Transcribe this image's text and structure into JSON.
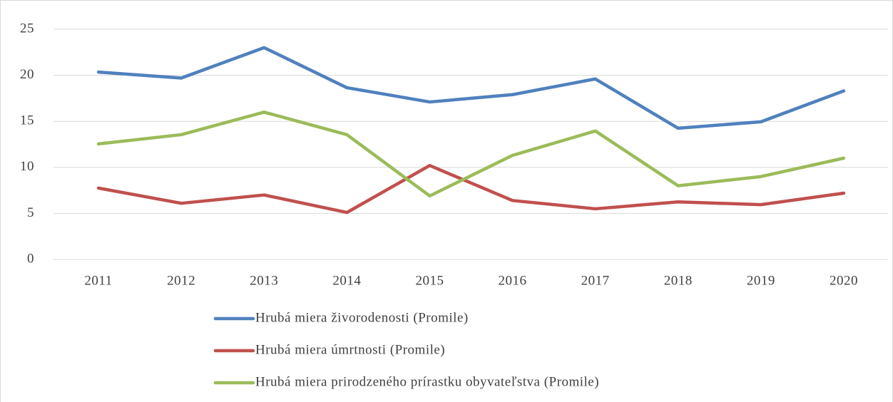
{
  "chart_data": {
    "type": "line",
    "categories": [
      "2011",
      "2012",
      "2013",
      "2014",
      "2015",
      "2016",
      "2017",
      "2018",
      "2019",
      "2020"
    ],
    "series": [
      {
        "name": "Hrubá miera živorodenosti (Promile)",
        "color": "#4f81bd",
        "values": [
          20.35,
          19.7,
          23.0,
          18.65,
          17.1,
          17.9,
          19.6,
          14.25,
          14.95,
          18.3
        ]
      },
      {
        "name": "Hrubá miera úmrtnosti (Promile)",
        "color": "#c0504d",
        "values": [
          7.75,
          6.1,
          7.0,
          5.1,
          10.2,
          6.4,
          5.5,
          6.25,
          5.95,
          7.2
        ]
      },
      {
        "name": "Hrubá miera prirodzeného prírastku obyvateľstva (Promile)",
        "color": "#9bbb59",
        "values": [
          12.55,
          13.55,
          16.0,
          13.55,
          6.9,
          11.3,
          13.95,
          8.0,
          9.0,
          11.0
        ]
      }
    ],
    "ylim": [
      0,
      25
    ],
    "yticks": [
      0,
      5,
      10,
      15,
      20,
      25
    ],
    "grid": true,
    "legend": "bottom"
  }
}
